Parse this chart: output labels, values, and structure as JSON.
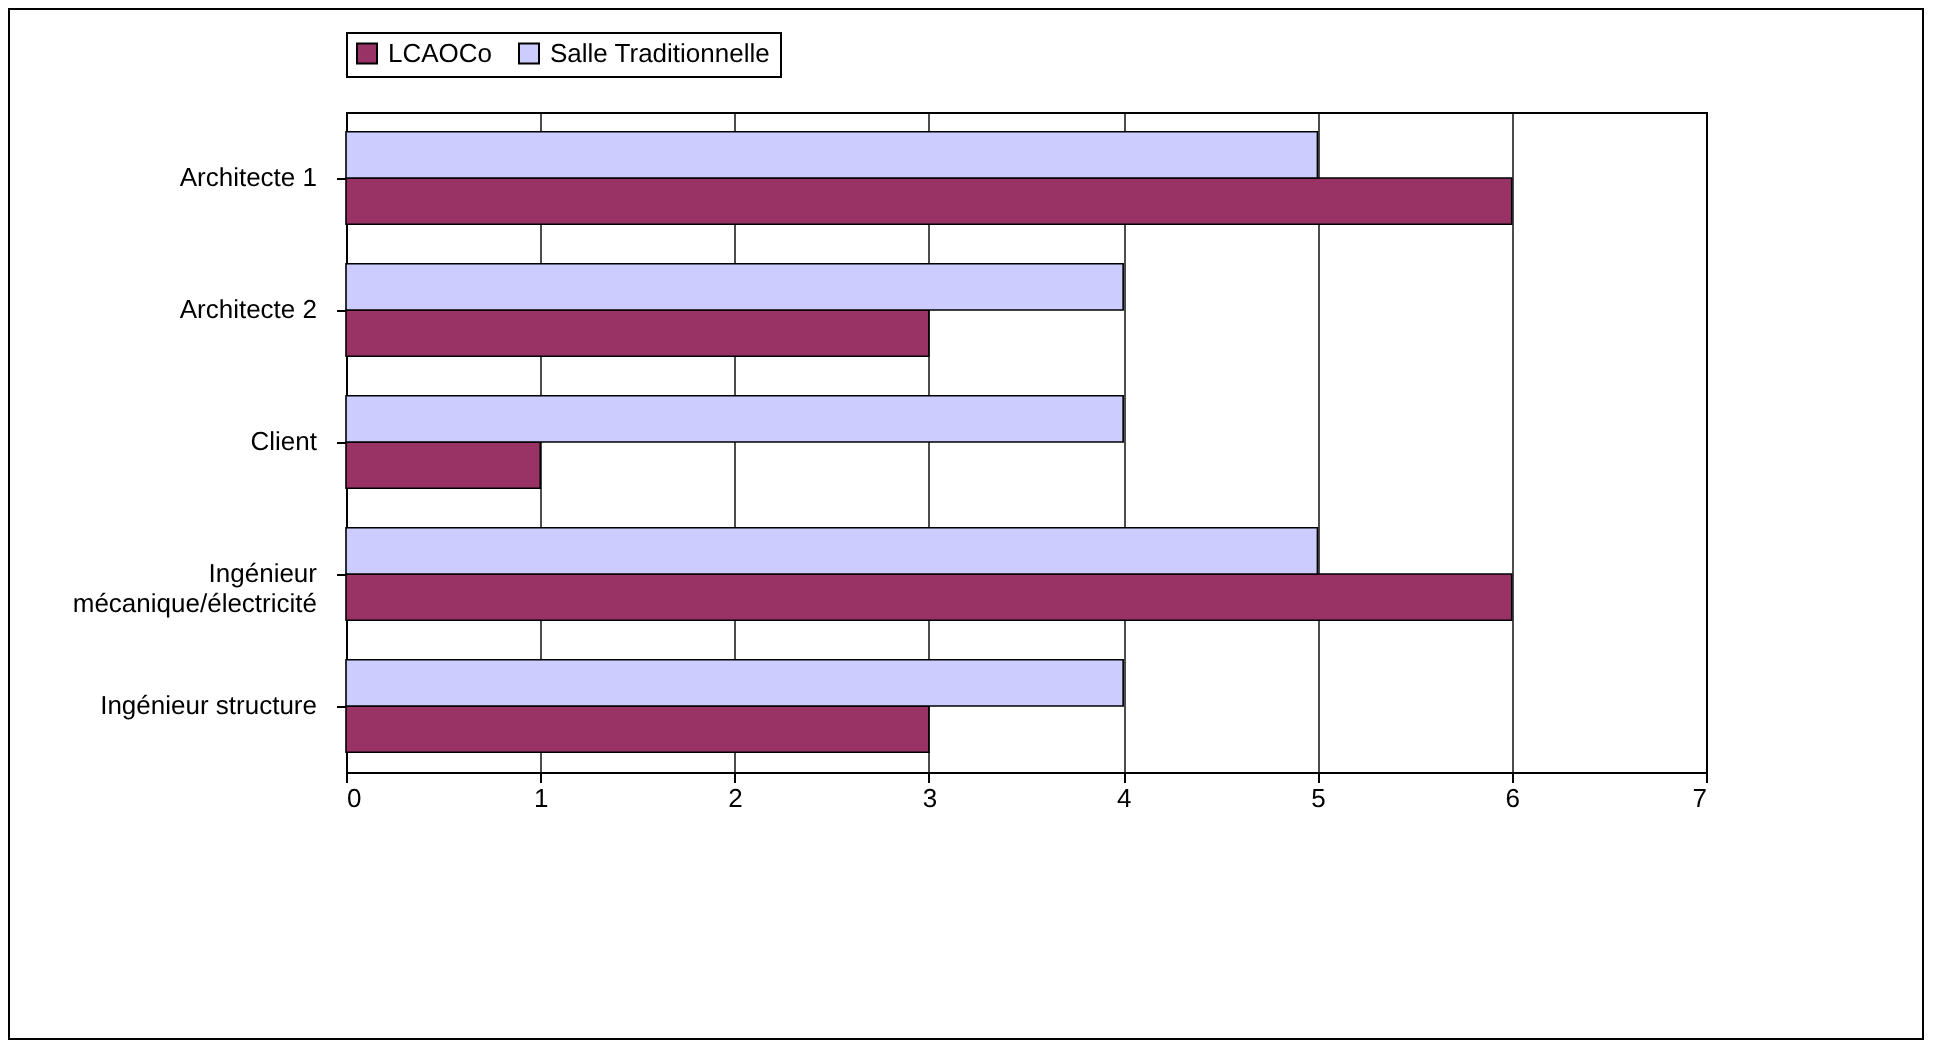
{
  "chart_data": {
    "type": "bar",
    "orientation": "horizontal",
    "categories": [
      "Architecte 1",
      "Architecte 2",
      "Client",
      "Ingénieur mécanique/électricité",
      "Ingénieur structure"
    ],
    "series": [
      {
        "name": "LCAOCo",
        "color": "#993366",
        "values": [
          6,
          3,
          1,
          6,
          3
        ]
      },
      {
        "name": "Salle Traditionnelle",
        "color": "#ccccff",
        "values": [
          5,
          4,
          4,
          5,
          4
        ]
      }
    ],
    "xlim": [
      0,
      7
    ],
    "xticks": [
      0,
      1,
      2,
      3,
      4,
      5,
      6,
      7
    ],
    "grid": "x",
    "legend": "top"
  }
}
